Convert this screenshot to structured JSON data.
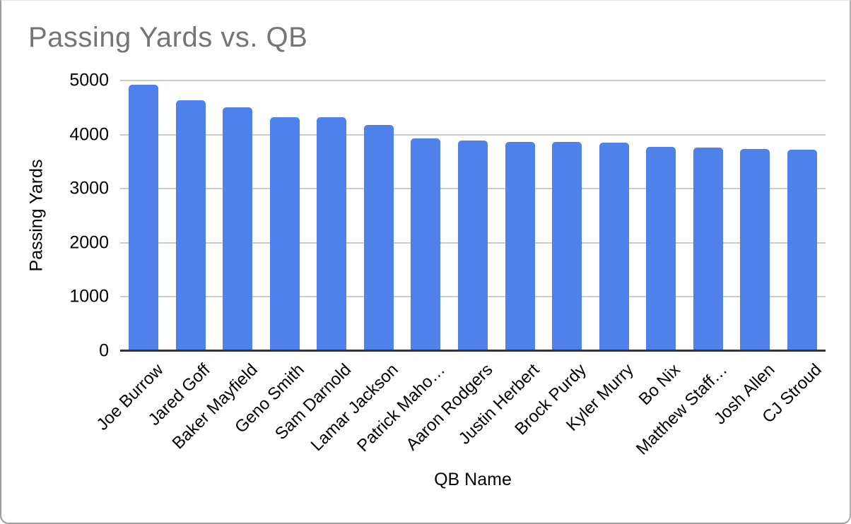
{
  "chart_data": {
    "type": "bar",
    "title": "Passing Yards vs. QB",
    "xlabel": "QB Name",
    "ylabel": "Passing Yards",
    "categories": [
      "Joe Burrow",
      "Jared Goff",
      "Baker Mayfield",
      "Geno Smith",
      "Sam Darnold",
      "Lamar Jackson",
      "Patrick Maho…",
      "Aaron Rodgers",
      "Justin Herbert",
      "Brock Purdy",
      "Kyler Murry",
      "Bo Nix",
      "Matthew Staff…",
      "Josh Allen",
      "CJ Stroud"
    ],
    "values": [
      4918,
      4629,
      4500,
      4320,
      4319,
      4172,
      3928,
      3897,
      3870,
      3864,
      3851,
      3775,
      3762,
      3731,
      3727
    ],
    "ylim": [
      0,
      5000
    ],
    "yticks": [
      0,
      1000,
      2000,
      3000,
      4000,
      5000
    ],
    "grid": true,
    "legend": "none",
    "bar_color": "#4e82ea",
    "gridline_color": "#cccccc",
    "axis_color": "#333333",
    "title_color": "#757575",
    "label_color": "#000000"
  }
}
